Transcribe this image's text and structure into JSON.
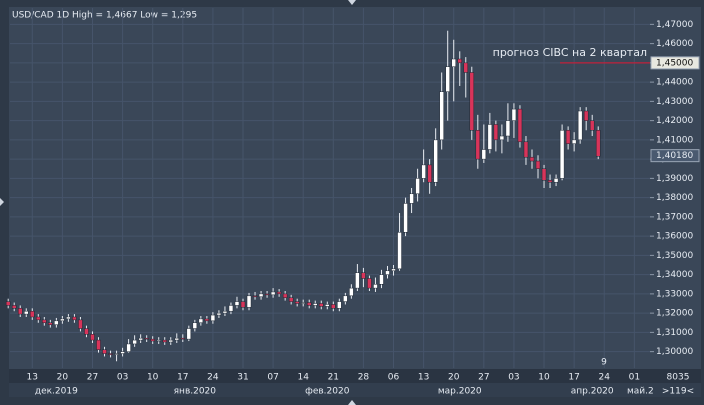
{
  "chart_data": {
    "type": "candlestick",
    "title": "USD/CAD 1D High = 1,4667 Low = 1,295",
    "up_color": "#ffffff",
    "down_color": "#d8345a",
    "grid": true,
    "xlim": [
      0.3,
      106.6
    ],
    "xticks": [
      {
        "value": 4,
        "label": "13"
      },
      {
        "value": 9,
        "label": "20"
      },
      {
        "value": 14,
        "label": "27"
      },
      {
        "value": 19,
        "label": "03"
      },
      {
        "value": 24,
        "label": "10"
      },
      {
        "value": 29,
        "label": "17"
      },
      {
        "value": 34,
        "label": "24"
      },
      {
        "value": 39,
        "label": "31"
      },
      {
        "value": 44,
        "label": "07"
      },
      {
        "value": 49,
        "label": "14"
      },
      {
        "value": 54,
        "label": "21"
      },
      {
        "value": 59,
        "label": "28"
      },
      {
        "value": 64,
        "label": "06"
      },
      {
        "value": 69,
        "label": "13"
      },
      {
        "value": 74,
        "label": "20"
      },
      {
        "value": 79,
        "label": "27"
      },
      {
        "value": 84,
        "label": "03"
      },
      {
        "value": 89,
        "label": "10"
      },
      {
        "value": 94,
        "label": "17"
      },
      {
        "value": 99,
        "label": "24"
      },
      {
        "value": 104,
        "label": "01"
      }
    ],
    "months": [
      {
        "value": 8,
        "label": "дек.2019"
      },
      {
        "value": 31,
        "label": "янв.2020"
      },
      {
        "value": 53,
        "label": "фев.2020"
      },
      {
        "value": 75,
        "label": "мар.2020"
      },
      {
        "value": 97,
        "label": "апр.2020"
      },
      {
        "value": 105,
        "label": "май.2"
      }
    ],
    "ylim": [
      1.2915,
      1.4785
    ],
    "yticks": [
      {
        "value": 1.3,
        "label": "1,30000"
      },
      {
        "value": 1.31,
        "label": "1,31000"
      },
      {
        "value": 1.32,
        "label": "1,32000"
      },
      {
        "value": 1.33,
        "label": "1,33000"
      },
      {
        "value": 1.34,
        "label": "1,34000"
      },
      {
        "value": 1.35,
        "label": "1,35000"
      },
      {
        "value": 1.36,
        "label": "1,36000"
      },
      {
        "value": 1.37,
        "label": "1,37000"
      },
      {
        "value": 1.38,
        "label": "1,38000"
      },
      {
        "value": 1.39,
        "label": "1,39000"
      },
      {
        "value": 1.4,
        "label": "1,40000"
      },
      {
        "value": 1.41,
        "label": "1,41000"
      },
      {
        "value": 1.42,
        "label": "1,42000"
      },
      {
        "value": 1.43,
        "label": "1,43000"
      },
      {
        "value": 1.44,
        "label": "1,44000"
      },
      {
        "value": 1.45,
        "label": "1,45000"
      },
      {
        "value": 1.46,
        "label": "1,46000"
      },
      {
        "value": 1.47,
        "label": "1,47000"
      }
    ],
    "open": [
      1.326,
      1.324,
      1.3225,
      1.3195,
      1.321,
      1.318,
      1.3165,
      1.315,
      1.314,
      1.316,
      1.317,
      1.318,
      1.3165,
      1.312,
      1.309,
      1.306,
      1.301,
      1.299,
      1.2985,
      1.299,
      1.3,
      1.304,
      1.306,
      1.307,
      1.3065,
      1.3055,
      1.306,
      1.305,
      1.306,
      1.307,
      1.3065,
      1.312,
      1.315,
      1.317,
      1.316,
      1.319,
      1.32,
      1.321,
      1.324,
      1.326,
      1.323,
      1.329,
      1.3285,
      1.33,
      1.3295,
      1.331,
      1.33,
      1.328,
      1.326,
      1.325,
      1.3255,
      1.324,
      1.325,
      1.3235,
      1.3245,
      1.3225,
      1.326,
      1.329,
      1.333,
      1.341,
      1.338,
      1.333,
      1.335,
      1.34,
      1.342,
      1.343,
      1.362,
      1.377,
      1.382,
      1.39,
      1.397,
      1.388,
      1.41,
      1.435,
      1.448,
      1.452,
      1.45,
      1.445,
      1.415,
      1.4,
      1.405,
      1.418,
      1.41,
      1.412,
      1.42,
      1.426,
      1.409,
      1.401,
      1.399,
      1.395,
      1.389,
      1.388,
      1.39,
      1.415,
      1.408,
      1.41,
      1.425,
      1.42,
      1.415
    ],
    "high": [
      1.3275,
      1.3255,
      1.324,
      1.3225,
      1.3225,
      1.3195,
      1.318,
      1.3165,
      1.3175,
      1.3185,
      1.3195,
      1.3195,
      1.318,
      1.3135,
      1.3105,
      1.3075,
      1.3025,
      1.3005,
      1.3005,
      1.302,
      1.3065,
      1.3085,
      1.309,
      1.3085,
      1.308,
      1.3075,
      1.3075,
      1.3075,
      1.3095,
      1.309,
      1.3135,
      1.3165,
      1.3185,
      1.3185,
      1.3205,
      1.3215,
      1.3235,
      1.3255,
      1.3285,
      1.3275,
      1.3305,
      1.331,
      1.3315,
      1.3315,
      1.333,
      1.3325,
      1.3315,
      1.3295,
      1.3275,
      1.327,
      1.327,
      1.3265,
      1.3265,
      1.326,
      1.326,
      1.3275,
      1.3305,
      1.335,
      1.3455,
      1.3435,
      1.3395,
      1.3385,
      1.3425,
      1.3445,
      1.345,
      1.372,
      1.38,
      1.385,
      1.395,
      1.405,
      1.4,
      1.416,
      1.445,
      1.4667,
      1.462,
      1.456,
      1.453,
      1.448,
      1.423,
      1.418,
      1.424,
      1.42,
      1.418,
      1.429,
      1.429,
      1.428,
      1.412,
      1.405,
      1.402,
      1.397,
      1.392,
      1.392,
      1.418,
      1.417,
      1.414,
      1.427,
      1.427,
      1.423,
      1.417
    ],
    "low": [
      1.3225,
      1.321,
      1.318,
      1.318,
      1.3165,
      1.315,
      1.3135,
      1.3125,
      1.3125,
      1.3145,
      1.3155,
      1.315,
      1.3105,
      1.3075,
      1.3045,
      1.2995,
      1.2975,
      1.297,
      1.295,
      1.2975,
      1.2995,
      1.3025,
      1.3045,
      1.305,
      1.304,
      1.304,
      1.3035,
      1.3035,
      1.3045,
      1.305,
      1.3055,
      1.3105,
      1.3135,
      1.3145,
      1.3145,
      1.3175,
      1.3185,
      1.3195,
      1.3225,
      1.3215,
      1.3215,
      1.327,
      1.327,
      1.328,
      1.328,
      1.3285,
      1.3265,
      1.3245,
      1.3235,
      1.3235,
      1.3225,
      1.3225,
      1.322,
      1.322,
      1.321,
      1.321,
      1.3245,
      1.3275,
      1.3315,
      1.3335,
      1.3315,
      1.331,
      1.333,
      1.338,
      1.3395,
      1.342,
      1.36,
      1.372,
      1.378,
      1.388,
      1.382,
      1.386,
      1.405,
      1.42,
      1.43,
      1.438,
      1.432,
      1.41,
      1.395,
      1.398,
      1.403,
      1.404,
      1.403,
      1.409,
      1.411,
      1.406,
      1.397,
      1.395,
      1.39,
      1.385,
      1.385,
      1.386,
      1.389,
      1.405,
      1.404,
      1.408,
      1.415,
      1.412,
      1.4
    ],
    "close": [
      1.324,
      1.3225,
      1.3195,
      1.321,
      1.318,
      1.3165,
      1.315,
      1.314,
      1.316,
      1.317,
      1.318,
      1.3165,
      1.312,
      1.309,
      1.306,
      1.301,
      1.299,
      1.2985,
      1.299,
      1.3,
      1.304,
      1.306,
      1.307,
      1.3065,
      1.3055,
      1.306,
      1.305,
      1.306,
      1.307,
      1.3065,
      1.312,
      1.315,
      1.317,
      1.316,
      1.319,
      1.32,
      1.321,
      1.324,
      1.326,
      1.323,
      1.329,
      1.3285,
      1.33,
      1.3295,
      1.331,
      1.33,
      1.328,
      1.326,
      1.325,
      1.3255,
      1.324,
      1.325,
      1.3235,
      1.3245,
      1.3225,
      1.326,
      1.329,
      1.333,
      1.341,
      1.338,
      1.333,
      1.335,
      1.34,
      1.342,
      1.343,
      1.362,
      1.377,
      1.382,
      1.39,
      1.397,
      1.388,
      1.41,
      1.435,
      1.448,
      1.452,
      1.45,
      1.445,
      1.415,
      1.4,
      1.405,
      1.418,
      1.41,
      1.412,
      1.42,
      1.426,
      1.409,
      1.401,
      1.399,
      1.395,
      1.389,
      1.388,
      1.39,
      1.415,
      1.408,
      1.41,
      1.425,
      1.42,
      1.415,
      1.4015
    ],
    "forecast": {
      "value": 1.45,
      "label": "прогноз  CIBC на 2 квартал",
      "color": "#c0203a"
    },
    "price_markers": [
      {
        "value": 1.45,
        "label": "1,45000"
      },
      {
        "value": 1.4018,
        "label": "1,40180"
      }
    ],
    "corner_label": "9",
    "volume_label": "8035",
    "zoom_label": ">119<"
  }
}
